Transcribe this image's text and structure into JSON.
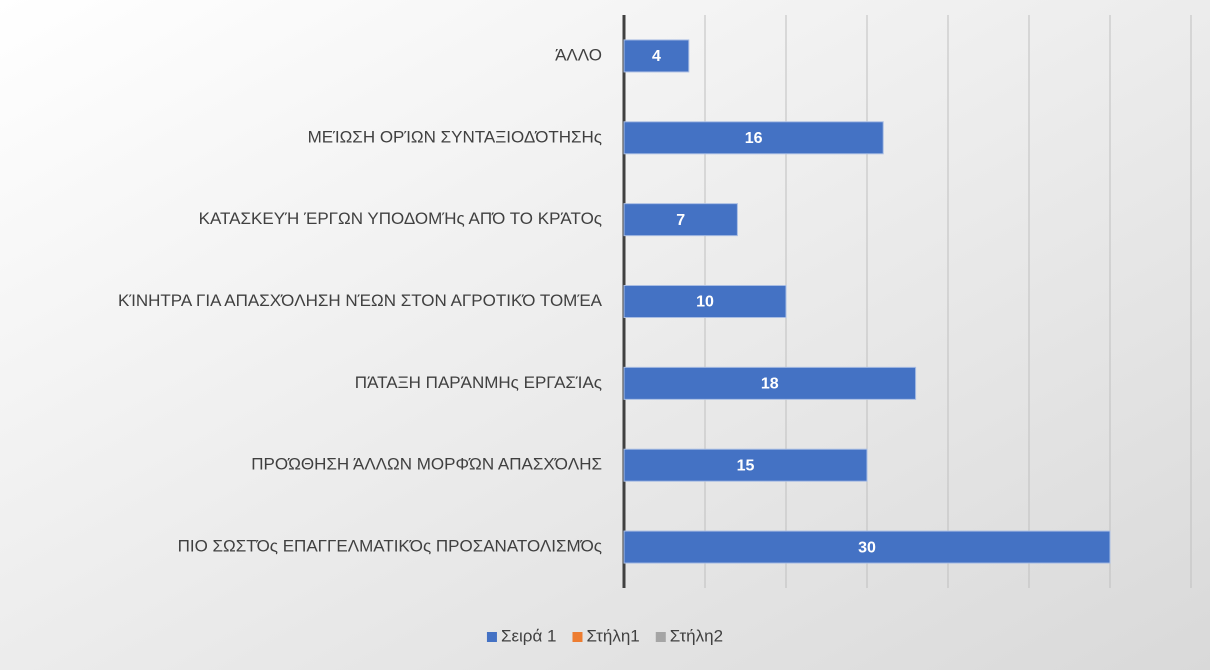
{
  "chart_data": {
    "type": "bar",
    "orientation": "horizontal",
    "categories": [
      "ΆΛΛΟ",
      "ΜΕΊΩΣΗ ΟΡΊΩΝ ΣΥΝΤΑΞΙΟΔΌΤΗΣΗς",
      "ΚΑΤΑΣΚΕΥΉ ΈΡΓΩΝ ΥΠΟΔΟΜΉς ΑΠΌ ΤΟ ΚΡΆΤΟς",
      "ΚΊΝΗΤΡΑ ΓΙΑ ΑΠΑΣΧΌΛΗΣΗ ΝΈΩΝ ΣΤΟΝ ΑΓΡΟΤΙΚΌ ΤΟΜΈΑ",
      "ΠΆΤΑΞΗ ΠΑΡΆΝΜΗς ΕΡΓΑΣΊΑς",
      "ΠΡΟΏΘΗΣΗ ΆΛΛΩΝ ΜΟΡΦΏΝ ΑΠΑΣΧΌΛΗΣ",
      "ΠΙΟ ΣΩΣΤΌς ΕΠΑΓΓΕΛΜΑΤΙΚΌς ΠΡΟΣΑΝΑΤΟΛΙΣΜΌς"
    ],
    "series": [
      {
        "name": "Σειρά 1",
        "color": "#4472c4",
        "values": [
          4,
          16,
          7,
          10,
          18,
          15,
          30
        ]
      },
      {
        "name": "Στήλη1",
        "color": "#ed7d31",
        "values": [
          null,
          null,
          null,
          null,
          null,
          null,
          null
        ]
      },
      {
        "name": "Στήλη2",
        "color": "#a5a5a5",
        "values": [
          null,
          null,
          null,
          null,
          null,
          null,
          null
        ]
      }
    ],
    "xlim": [
      0,
      35
    ],
    "xticks": [
      0,
      5,
      10,
      15,
      20,
      25,
      30,
      35
    ],
    "grid": true,
    "legend": "bottom"
  }
}
